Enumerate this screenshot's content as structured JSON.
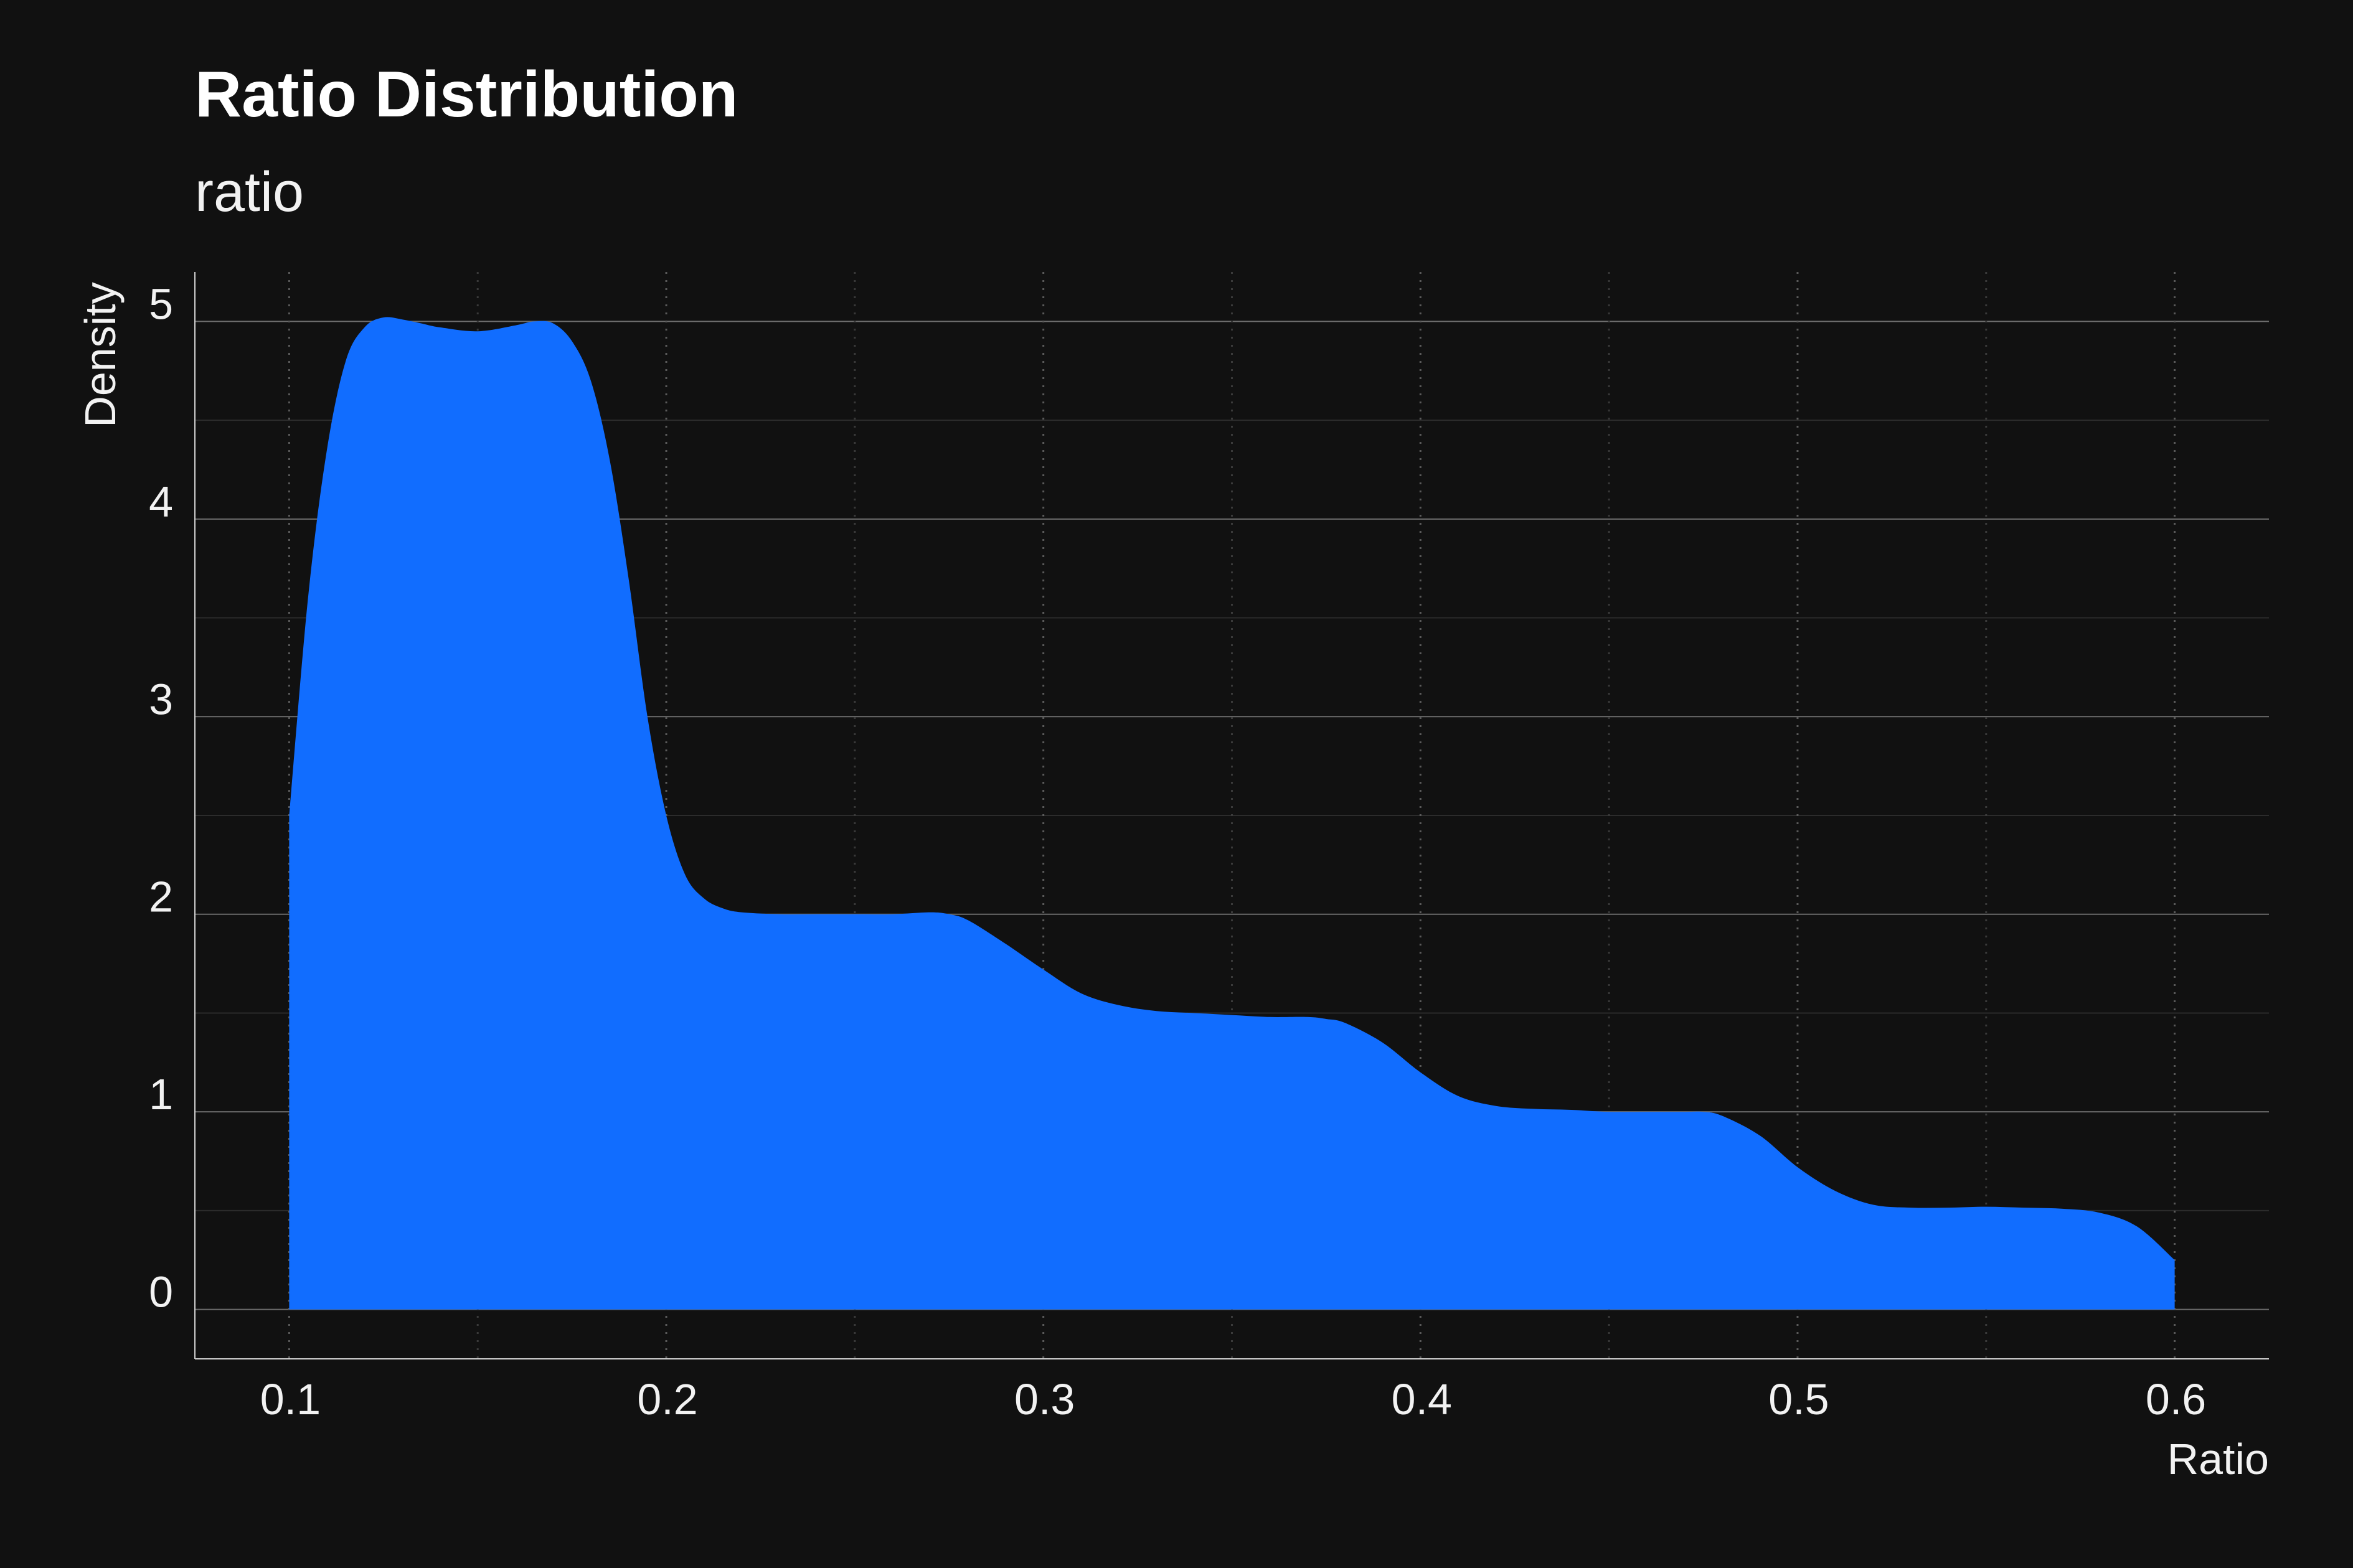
{
  "chart_data": {
    "type": "area",
    "title": "Ratio Distribution",
    "subtitle": "ratio",
    "xlabel": "Ratio",
    "ylabel": "Density",
    "xlim": [
      0.075,
      0.625
    ],
    "ylim": [
      -0.25,
      5.25
    ],
    "x_ticks": [
      0.1,
      0.2,
      0.3,
      0.4,
      0.5,
      0.6
    ],
    "x_tick_labels": [
      "0.1",
      "0.2",
      "0.3",
      "0.4",
      "0.5",
      "0.6"
    ],
    "y_ticks": [
      0,
      1,
      2,
      3,
      4,
      5
    ],
    "y_tick_labels": [
      "0",
      "1",
      "2",
      "3",
      "4",
      "5"
    ],
    "grid": true,
    "series": [
      {
        "color": "#116dff",
        "x": [
          0.1,
          0.105,
          0.11,
          0.115,
          0.12,
          0.125,
          0.13,
          0.135,
          0.14,
          0.15,
          0.16,
          0.165,
          0.17,
          0.175,
          0.18,
          0.185,
          0.19,
          0.195,
          0.2,
          0.205,
          0.21,
          0.215,
          0.22,
          0.23,
          0.24,
          0.25,
          0.26,
          0.27,
          0.275,
          0.28,
          0.29,
          0.3,
          0.31,
          0.32,
          0.33,
          0.34,
          0.35,
          0.36,
          0.37,
          0.375,
          0.38,
          0.39,
          0.4,
          0.41,
          0.42,
          0.43,
          0.44,
          0.45,
          0.46,
          0.47,
          0.475,
          0.48,
          0.49,
          0.5,
          0.51,
          0.52,
          0.53,
          0.54,
          0.55,
          0.56,
          0.57,
          0.58,
          0.59,
          0.6
        ],
        "y": [
          2.5,
          3.6,
          4.35,
          4.8,
          4.97,
          5.02,
          5.01,
          4.99,
          4.97,
          4.95,
          4.98,
          5.0,
          4.99,
          4.9,
          4.7,
          4.3,
          3.7,
          3.0,
          2.5,
          2.2,
          2.08,
          2.03,
          2.01,
          2.0,
          2.0,
          2.0,
          2.0,
          2.01,
          2.0,
          1.97,
          1.85,
          1.72,
          1.6,
          1.54,
          1.51,
          1.5,
          1.49,
          1.48,
          1.48,
          1.47,
          1.45,
          1.35,
          1.2,
          1.08,
          1.03,
          1.015,
          1.01,
          1.0,
          1.0,
          1.0,
          1.0,
          0.98,
          0.88,
          0.72,
          0.6,
          0.53,
          0.515,
          0.515,
          0.52,
          0.515,
          0.51,
          0.49,
          0.42,
          0.25
        ]
      }
    ]
  }
}
